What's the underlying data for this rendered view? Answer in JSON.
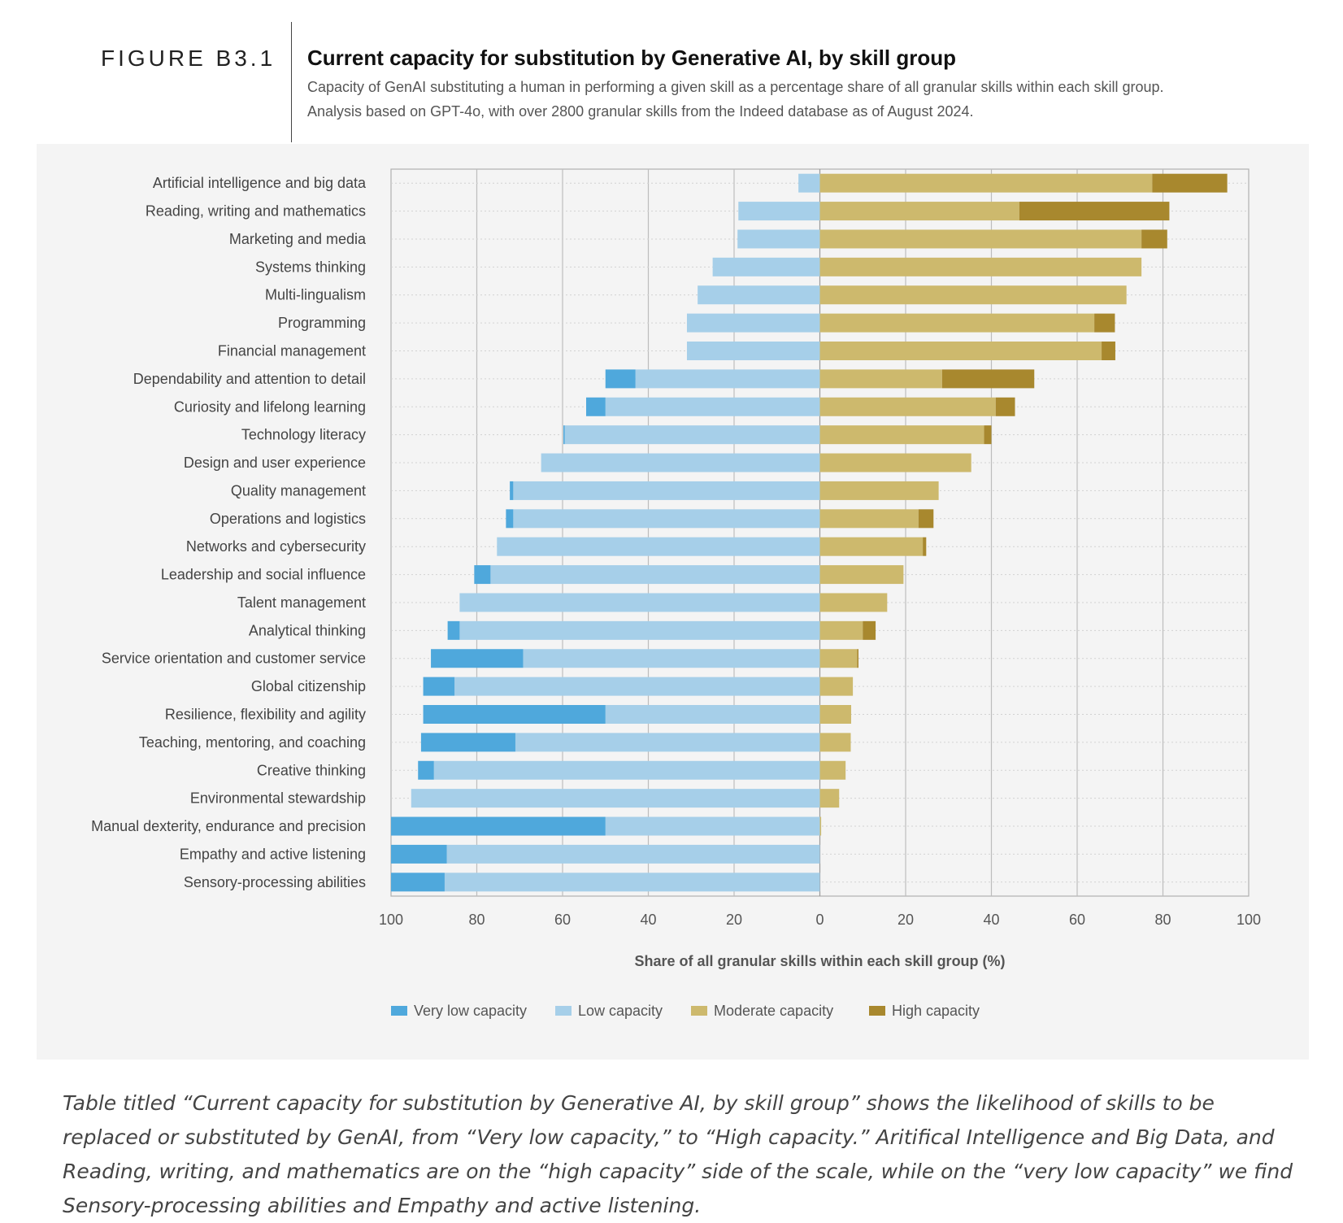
{
  "figure": {
    "label": "FIGURE B3.1",
    "title": "Current capacity for substitution by Generative AI, by skill group",
    "subtitle_line1": "Capacity of GenAI substituting a human in performing a given skill as a percentage share of all granular skills within each skill group.",
    "subtitle_line2": "Analysis based on GPT-4o, with over 2800 granular skills from the Indeed database as of August 2024."
  },
  "caption": "Table titled “Current capacity for substitution by Generative AI, by skill group” shows the likelihood of skills to be replaced or substituted by GenAI, from “Very low capacity,” to “High capacity.” Aritifical Intelligence and Big Data, and Reading, writing, and mathematics are on the “high capacity” side of the scale, while on the “very low capacity” we find Sensory-processing abilities and Empathy and active listening.",
  "colors": {
    "very_low": "#4fa8dc",
    "low": "#a6cfe9",
    "moderate": "#cdb96d",
    "high": "#a8882e",
    "plot_bg": "#f4f4f4",
    "grid": "#bdbdbd"
  },
  "chart_data": {
    "type": "bar",
    "orientation": "horizontal-diverging-stacked",
    "title": "Current capacity for substitution by Generative AI, by skill group",
    "xlabel": "Share of all granular skills within each skill group (%)",
    "xlim": [
      -100,
      100
    ],
    "x_tick_labels": [
      "100",
      "80",
      "60",
      "40",
      "20",
      "0",
      "20",
      "40",
      "60",
      "80",
      "100"
    ],
    "legend_position": "bottom",
    "categories": [
      "Artificial intelligence and big data",
      "Reading, writing and mathematics",
      "Marketing and media",
      "Systems thinking",
      "Multi-lingualism",
      "Programming",
      "Financial management",
      "Dependability and attention to detail",
      "Curiosity and lifelong learning",
      "Technology literacy",
      "Design and user experience",
      "Quality management",
      "Operations and logistics",
      "Networks and cybersecurity",
      "Leadership and social influence",
      "Talent management",
      "Analytical thinking",
      "Service orientation and customer service",
      "Global citizenship",
      "Resilience, flexibility and agility",
      "Teaching, mentoring, and coaching",
      "Creative thinking",
      "Environmental stewardship",
      "Manual dexterity, endurance and precision",
      "Empathy and active listening",
      "Sensory-processing abilities"
    ],
    "series": [
      {
        "name": "Very low capacity",
        "side": "left",
        "values": [
          0,
          0,
          0,
          0,
          0,
          0,
          0,
          7,
          4.5,
          0.3,
          0,
          0.8,
          1.7,
          0,
          3.8,
          0,
          2.8,
          21.5,
          7.3,
          42.5,
          22,
          3.7,
          0,
          50,
          13,
          12.5
        ]
      },
      {
        "name": "Low capacity",
        "side": "left",
        "values": [
          5,
          19,
          19.2,
          25,
          28.5,
          31,
          31,
          43,
          50,
          59.5,
          65,
          71.5,
          71.5,
          75.3,
          76.8,
          84,
          84,
          69.2,
          85.2,
          50,
          71,
          90,
          95.3,
          50,
          87,
          87.5
        ]
      },
      {
        "name": "Moderate capacity",
        "side": "right",
        "values": [
          77.5,
          46.5,
          75,
          75,
          71.5,
          64,
          65.7,
          28.5,
          41,
          38.3,
          35.3,
          27.7,
          23,
          24,
          19.5,
          15.7,
          10,
          8.7,
          7.7,
          7.3,
          7.2,
          6,
          4.5,
          0.3,
          0,
          0
        ]
      },
      {
        "name": "High capacity",
        "side": "right",
        "values": [
          17.5,
          35,
          6,
          0,
          0,
          4.8,
          3.2,
          21.5,
          4.5,
          1.7,
          0,
          0,
          3.5,
          0.8,
          0,
          0,
          3,
          0.3,
          0,
          0,
          0,
          0,
          0,
          0,
          0,
          0
        ]
      }
    ]
  }
}
